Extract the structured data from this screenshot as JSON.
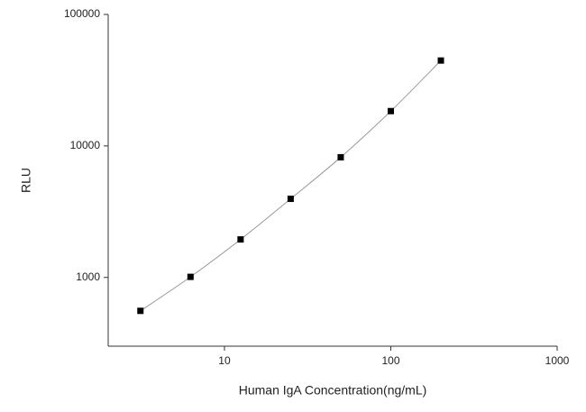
{
  "chart_data": {
    "type": "scatter",
    "x_label": "Human IgA Concentration(ng/mL)",
    "y_label": "RLU",
    "x": [
      3.125,
      6.25,
      12.5,
      25,
      50,
      100,
      200
    ],
    "series": [
      {
        "color": "#000000",
        "line_color": "#999999",
        "values": [
          557,
          1010,
          1945,
          3960,
          8200,
          18400,
          44600
        ]
      }
    ],
    "xlog": true,
    "ylog": true,
    "xlim": [
      2,
      1000
    ],
    "ylim": [
      300,
      100000
    ],
    "xticks": [
      10,
      100,
      1000
    ],
    "yticks": [
      1000,
      10000,
      100000
    ]
  }
}
